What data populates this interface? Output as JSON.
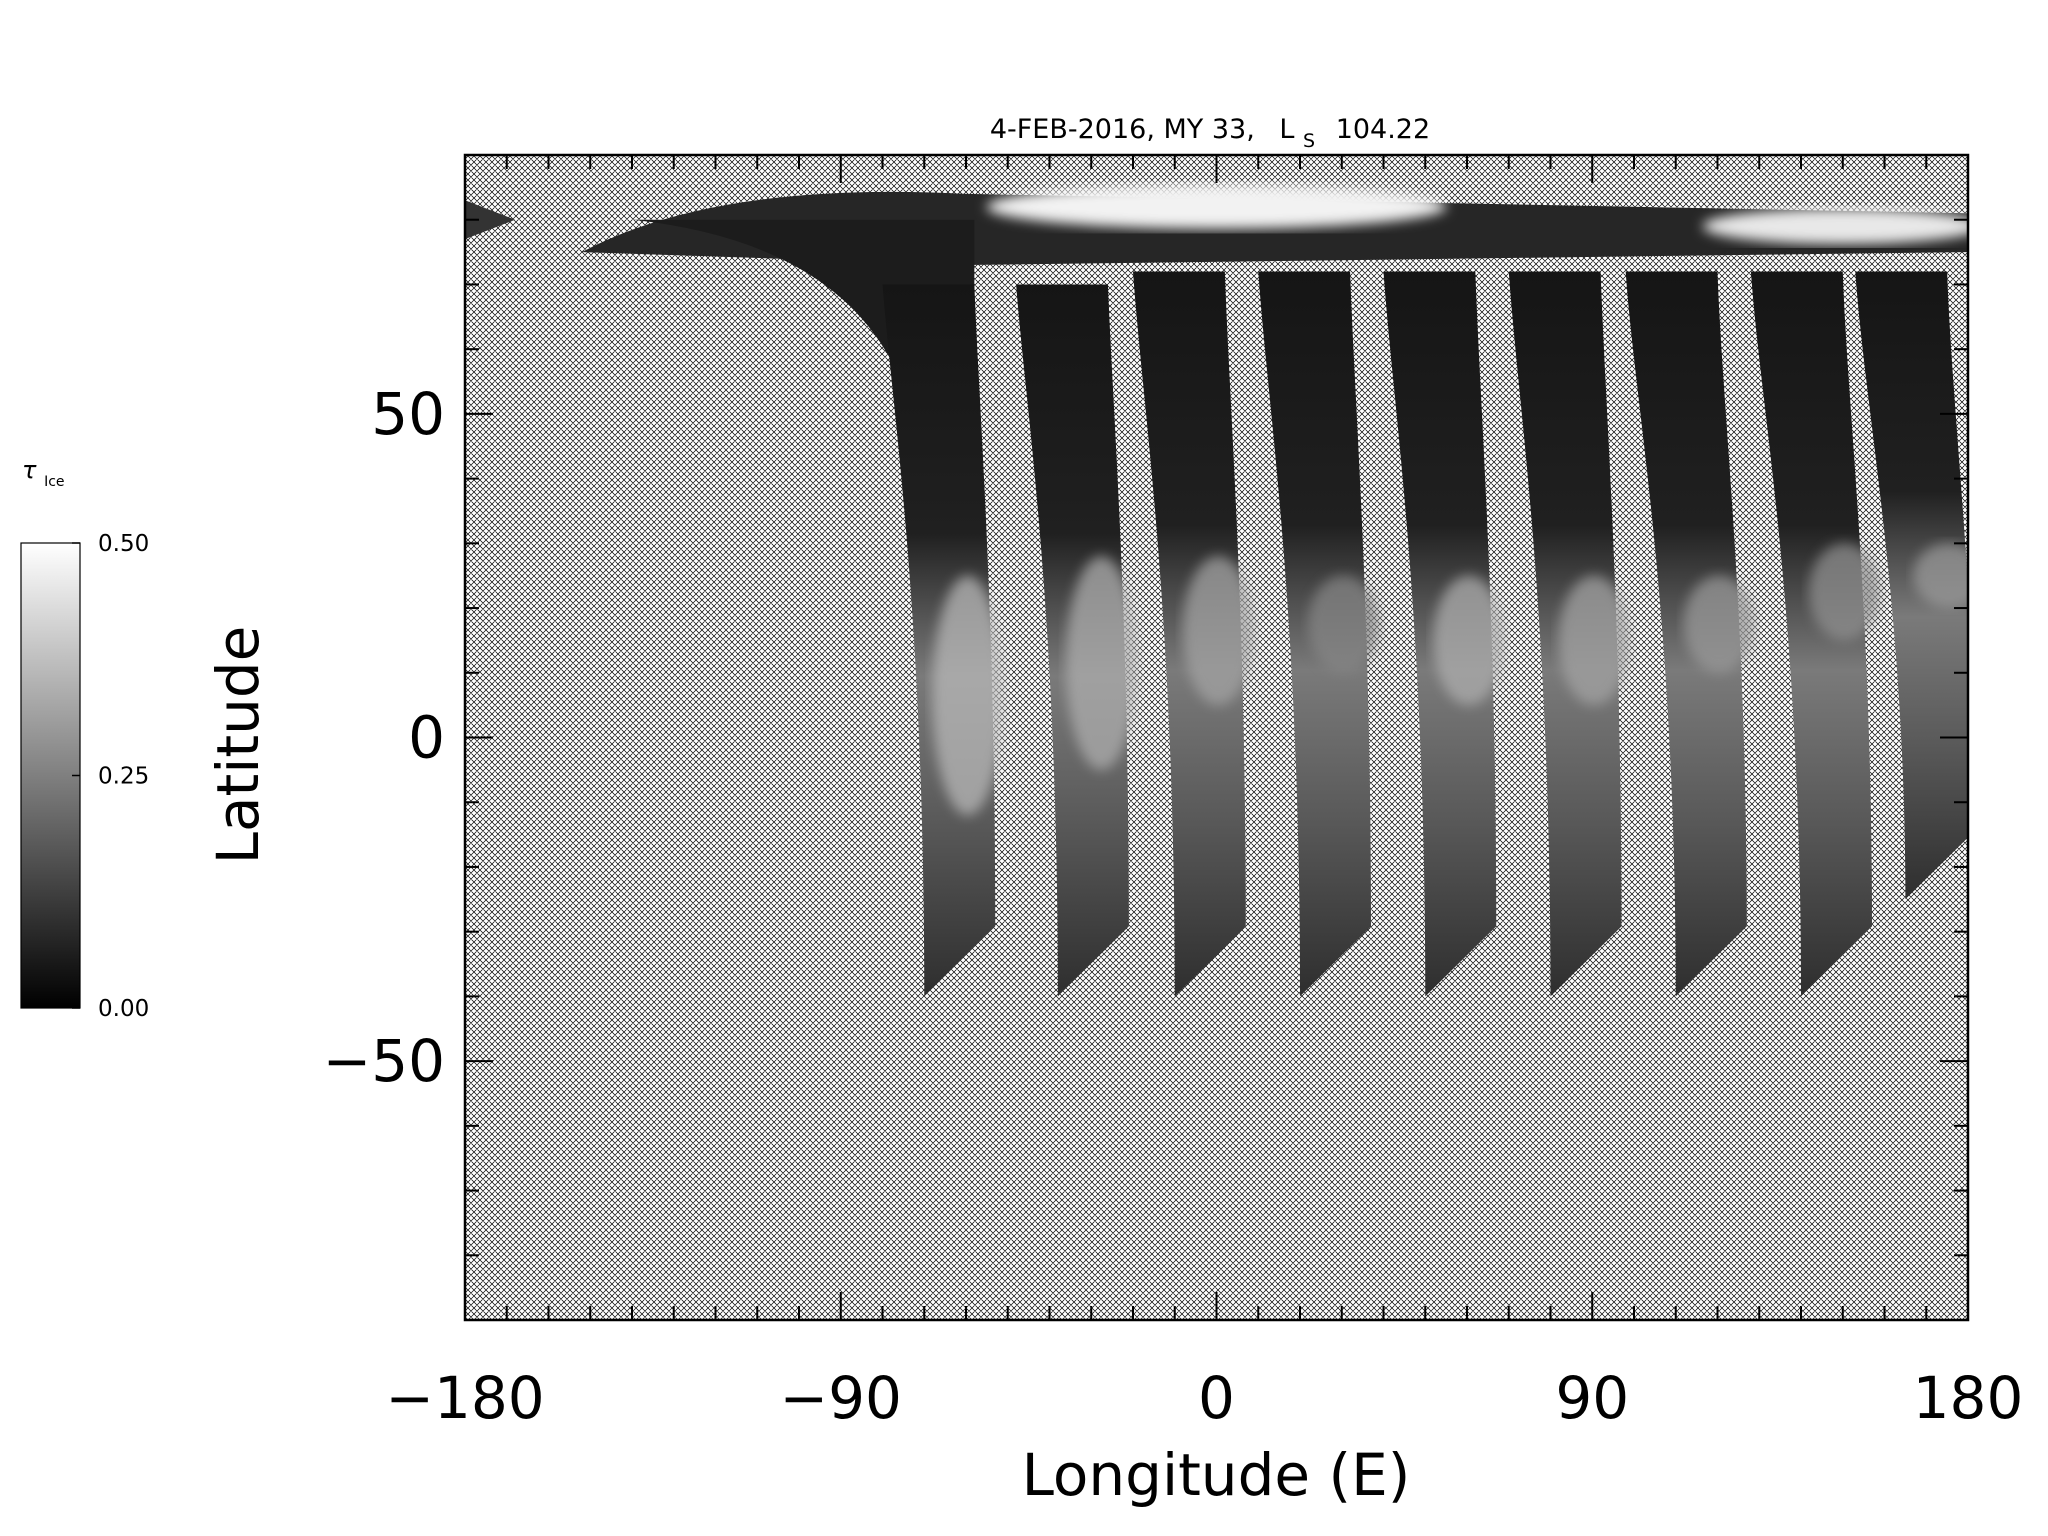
{
  "chart_data": {
    "type": "heatmap",
    "title": {
      "date": "4-FEB-2016, MY 33,",
      "ls_symbol": "L",
      "ls_sub": "S",
      "ls_value": "104.22"
    },
    "xlabel": "Longitude (E)",
    "ylabel": "Latitude",
    "xlim": [
      -180,
      180
    ],
    "ylim": [
      -90,
      90
    ],
    "xticks": [
      -180,
      -90,
      0,
      90,
      180
    ],
    "yticks": [
      -50,
      0,
      50
    ],
    "x_minor_step": 10,
    "y_minor_step": 10,
    "no_data_fill": "crosshatch",
    "colorbar": {
      "symbol": "τ",
      "subscript": "Ice",
      "ticks": [
        "0.50",
        "0.25",
        "0.00"
      ],
      "range": [
        0.0,
        0.5
      ],
      "colormap": "grayscale",
      "color_min": "#000000",
      "color_max": "#ffffff"
    },
    "polar_coverage": {
      "lat_north_edge": 84,
      "lat_south_edge": 65
    },
    "swaths": [
      {
        "lon_start": -70,
        "lat_north": 70,
        "lat_south": -40,
        "lon_end_north": -58,
        "mean_tau": 0.18,
        "bright_lat": [
          -12,
          25
        ]
      },
      {
        "lon_start": -38,
        "lat_north": 70,
        "lat_south": -40,
        "lon_end_north": -26,
        "mean_tau": 0.17,
        "bright_lat": [
          -5,
          28
        ]
      },
      {
        "lon_start": -10,
        "lat_north": 72,
        "lat_south": -40,
        "lon_end_north": 2,
        "mean_tau": 0.16,
        "bright_lat": [
          5,
          28
        ]
      },
      {
        "lon_start": 20,
        "lat_north": 72,
        "lat_south": -40,
        "lon_end_north": 32,
        "mean_tau": 0.13,
        "bright_lat": [
          10,
          25
        ]
      },
      {
        "lon_start": 50,
        "lat_north": 72,
        "lat_south": -40,
        "lon_end_north": 62,
        "mean_tau": 0.17,
        "bright_lat": [
          5,
          25
        ]
      },
      {
        "lon_start": 80,
        "lat_north": 72,
        "lat_south": -40,
        "lon_end_north": 92,
        "mean_tau": 0.16,
        "bright_lat": [
          5,
          25
        ]
      },
      {
        "lon_start": 110,
        "lat_north": 72,
        "lat_south": -40,
        "lon_end_north": 120,
        "mean_tau": 0.15,
        "bright_lat": [
          10,
          25
        ]
      },
      {
        "lon_start": 140,
        "lat_north": 72,
        "lat_south": -40,
        "lon_end_north": 150,
        "mean_tau": 0.14,
        "bright_lat": [
          15,
          30
        ]
      },
      {
        "lon_start": 165,
        "lat_north": 72,
        "lat_south": -25,
        "lon_end_north": 175,
        "mean_tau": 0.15,
        "bright_lat": [
          20,
          30
        ]
      }
    ]
  }
}
